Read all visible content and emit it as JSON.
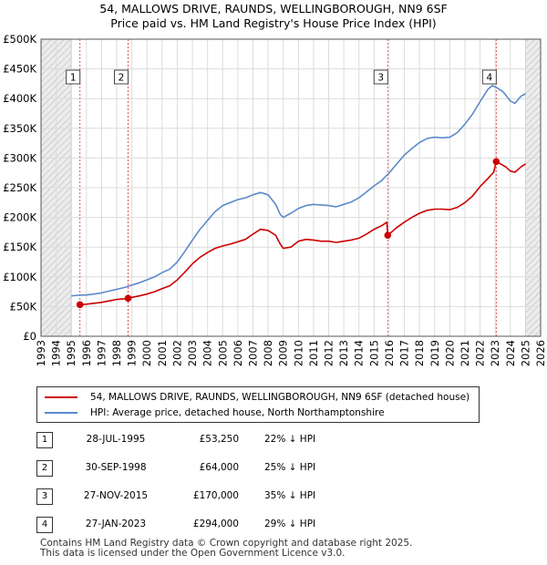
{
  "chart_data": {
    "type": "line",
    "title": "54, MALLOWS DRIVE, RAUNDS, WELLINGBOROUGH, NN9 6SF",
    "subtitle": "Price paid vs. HM Land Registry's House Price Index (HPI)",
    "xlim": [
      1993,
      2026
    ],
    "ylim": [
      0,
      500000
    ],
    "x_ticks": [
      "1993",
      "1994",
      "1995",
      "1996",
      "1997",
      "1998",
      "1999",
      "2000",
      "2001",
      "2002",
      "2003",
      "2004",
      "2005",
      "2006",
      "2007",
      "2008",
      "2009",
      "2010",
      "2011",
      "2012",
      "2013",
      "2014",
      "2015",
      "2016",
      "2017",
      "2018",
      "2019",
      "2020",
      "2021",
      "2022",
      "2023",
      "2024",
      "2025",
      "2026"
    ],
    "y_ticks": [
      {
        "value": 0,
        "label": "£0"
      },
      {
        "value": 50000,
        "label": "£50K"
      },
      {
        "value": 100000,
        "label": "£100K"
      },
      {
        "value": 150000,
        "label": "£150K"
      },
      {
        "value": 200000,
        "label": "£200K"
      },
      {
        "value": 250000,
        "label": "£250K"
      },
      {
        "value": 300000,
        "label": "£300K"
      },
      {
        "value": 350000,
        "label": "£350K"
      },
      {
        "value": 400000,
        "label": "£400K"
      },
      {
        "value": 450000,
        "label": "£450K"
      },
      {
        "value": 500000,
        "label": "£500K"
      }
    ],
    "no_data_ranges": [
      [
        1993,
        1995.0
      ],
      [
        2025.0,
        2026
      ]
    ],
    "series": [
      {
        "name": "54, MALLOWS DRIVE, RAUNDS, WELLINGBOROUGH, NN9 6SF (detached house)",
        "color": "#cc0000",
        "points": [
          [
            1995.57,
            53250
          ],
          [
            1996.0,
            54000
          ],
          [
            1996.5,
            55500
          ],
          [
            1997.0,
            57000
          ],
          [
            1997.5,
            59500
          ],
          [
            1998.0,
            62000
          ],
          [
            1998.5,
            63000
          ],
          [
            1998.75,
            64000
          ],
          [
            1999.0,
            65500
          ],
          [
            1999.5,
            68000
          ],
          [
            2000.0,
            71000
          ],
          [
            2000.5,
            75000
          ],
          [
            2001.0,
            80000
          ],
          [
            2001.5,
            85000
          ],
          [
            2002.0,
            95000
          ],
          [
            2002.5,
            108000
          ],
          [
            2003.0,
            122000
          ],
          [
            2003.5,
            133000
          ],
          [
            2004.0,
            141000
          ],
          [
            2004.5,
            148000
          ],
          [
            2005.0,
            152000
          ],
          [
            2005.5,
            155000
          ],
          [
            2006.0,
            159000
          ],
          [
            2006.5,
            163000
          ],
          [
            2007.0,
            172000
          ],
          [
            2007.5,
            180000
          ],
          [
            2008.0,
            178000
          ],
          [
            2008.5,
            170000
          ],
          [
            2008.8,
            155000
          ],
          [
            2009.0,
            148000
          ],
          [
            2009.5,
            150000
          ],
          [
            2010.0,
            160000
          ],
          [
            2010.5,
            163000
          ],
          [
            2011.0,
            162000
          ],
          [
            2011.5,
            160000
          ],
          [
            2012.0,
            160000
          ],
          [
            2012.5,
            158000
          ],
          [
            2013.0,
            160000
          ],
          [
            2013.5,
            162000
          ],
          [
            2014.0,
            165000
          ],
          [
            2014.5,
            172000
          ],
          [
            2015.0,
            180000
          ],
          [
            2015.5,
            186000
          ],
          [
            2015.85,
            192000
          ],
          [
            2015.9,
            170000
          ],
          [
            2016.0,
            172000
          ],
          [
            2016.5,
            183000
          ],
          [
            2017.0,
            192000
          ],
          [
            2017.5,
            200000
          ],
          [
            2018.0,
            207000
          ],
          [
            2018.5,
            212000
          ],
          [
            2019.0,
            214000
          ],
          [
            2019.5,
            214000
          ],
          [
            2020.0,
            213000
          ],
          [
            2020.5,
            217000
          ],
          [
            2021.0,
            225000
          ],
          [
            2021.5,
            236000
          ],
          [
            2022.0,
            252000
          ],
          [
            2022.5,
            265000
          ],
          [
            2022.9,
            276000
          ],
          [
            2023.07,
            294000
          ],
          [
            2023.3,
            291000
          ],
          [
            2023.7,
            285000
          ],
          [
            2024.0,
            278000
          ],
          [
            2024.3,
            276000
          ],
          [
            2024.7,
            285000
          ],
          [
            2025.0,
            290000
          ]
        ]
      },
      {
        "name": "HPI: Average price, detached house, North Northamptonshire",
        "color": "#5b8ac9",
        "points": [
          [
            1995.0,
            68000
          ],
          [
            1995.5,
            69000
          ],
          [
            1996.0,
            69500
          ],
          [
            1996.5,
            71000
          ],
          [
            1997.0,
            73000
          ],
          [
            1997.5,
            76000
          ],
          [
            1998.0,
            79000
          ],
          [
            1998.5,
            82000
          ],
          [
            1999.0,
            86000
          ],
          [
            1999.5,
            90000
          ],
          [
            2000.0,
            95000
          ],
          [
            2000.5,
            100000
          ],
          [
            2001.0,
            107000
          ],
          [
            2001.5,
            113000
          ],
          [
            2002.0,
            125000
          ],
          [
            2002.5,
            143000
          ],
          [
            2003.0,
            162000
          ],
          [
            2003.5,
            180000
          ],
          [
            2004.0,
            195000
          ],
          [
            2004.5,
            210000
          ],
          [
            2005.0,
            220000
          ],
          [
            2005.5,
            225000
          ],
          [
            2006.0,
            230000
          ],
          [
            2006.5,
            233000
          ],
          [
            2007.0,
            238000
          ],
          [
            2007.5,
            242000
          ],
          [
            2008.0,
            238000
          ],
          [
            2008.5,
            222000
          ],
          [
            2008.8,
            205000
          ],
          [
            2009.0,
            200000
          ],
          [
            2009.5,
            207000
          ],
          [
            2010.0,
            215000
          ],
          [
            2010.5,
            220000
          ],
          [
            2011.0,
            222000
          ],
          [
            2011.5,
            221000
          ],
          [
            2012.0,
            220000
          ],
          [
            2012.5,
            218000
          ],
          [
            2013.0,
            222000
          ],
          [
            2013.5,
            226000
          ],
          [
            2014.0,
            233000
          ],
          [
            2014.5,
            243000
          ],
          [
            2015.0,
            253000
          ],
          [
            2015.5,
            262000
          ],
          [
            2016.0,
            275000
          ],
          [
            2016.5,
            290000
          ],
          [
            2017.0,
            305000
          ],
          [
            2017.5,
            316000
          ],
          [
            2018.0,
            326000
          ],
          [
            2018.5,
            333000
          ],
          [
            2019.0,
            335000
          ],
          [
            2019.5,
            334000
          ],
          [
            2020.0,
            335000
          ],
          [
            2020.5,
            343000
          ],
          [
            2021.0,
            357000
          ],
          [
            2021.5,
            374000
          ],
          [
            2022.0,
            395000
          ],
          [
            2022.5,
            415000
          ],
          [
            2022.8,
            422000
          ],
          [
            2023.0,
            420000
          ],
          [
            2023.5,
            412000
          ],
          [
            2024.0,
            396000
          ],
          [
            2024.3,
            392000
          ],
          [
            2024.7,
            404000
          ],
          [
            2025.0,
            408000
          ]
        ]
      }
    ],
    "transactions": [
      {
        "id": "1",
        "x": 1995.57,
        "value": 53250
      },
      {
        "id": "2",
        "x": 1998.75,
        "value": 64000
      },
      {
        "id": "3",
        "x": 2015.9,
        "value": 170000
      },
      {
        "id": "4",
        "x": 2023.07,
        "value": 294000
      }
    ]
  },
  "legend": {
    "house_label": "54, MALLOWS DRIVE, RAUNDS, WELLINGBOROUGH, NN9 6SF (detached house)",
    "hpi_label": "HPI: Average price, detached house, North Northamptonshire",
    "house_color": "#cc0000",
    "hpi_color": "#5b8ac9"
  },
  "table": [
    {
      "id": "1",
      "date": "28-JUL-1995",
      "price": "£53,250",
      "hpi": "22% ↓ HPI"
    },
    {
      "id": "2",
      "date": "30-SEP-1998",
      "price": "£64,000",
      "hpi": "25% ↓ HPI"
    },
    {
      "id": "3",
      "date": "27-NOV-2015",
      "price": "£170,000",
      "hpi": "35% ↓ HPI"
    },
    {
      "id": "4",
      "date": "27-JAN-2023",
      "price": "£294,000",
      "hpi": "29% ↓ HPI"
    }
  ],
  "footer": {
    "line1": "Contains HM Land Registry data © Crown copyright and database right 2025.",
    "line2": "This data is licensed under the Open Government Licence v3.0."
  }
}
